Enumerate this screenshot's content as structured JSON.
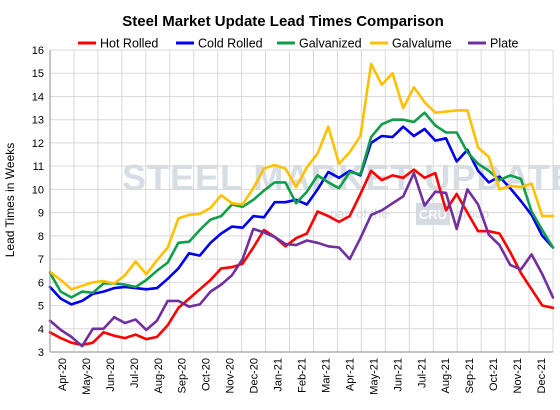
{
  "chart_data": {
    "type": "line",
    "title": "Steel Market Update Lead Times Comparison",
    "ylabel": "Lead Times in Weeks",
    "xlabel": "",
    "ylim": [
      3,
      16
    ],
    "yticks": [
      3,
      4,
      5,
      6,
      7,
      8,
      9,
      10,
      11,
      12,
      13,
      14,
      15,
      16
    ],
    "grid": true,
    "legend_position": "top",
    "x_labels": [
      "Apr-20",
      "May-20",
      "Jun-20",
      "Jul-20",
      "Aug-20",
      "Sep-20",
      "Oct-20",
      "Nov-20",
      "Dec-20",
      "Jan-21",
      "Feb-21",
      "Mar-21",
      "Apr-21",
      "May-21",
      "Jun-21",
      "Jul-21",
      "Aug-21",
      "Sep-21",
      "Oct-21",
      "Nov-21",
      "Dec-21"
    ],
    "series": [
      {
        "name": "Hot Rolled",
        "color": "#ff0000",
        "values": [
          3.85,
          3.6,
          3.4,
          3.3,
          3.4,
          3.85,
          3.7,
          3.6,
          3.75,
          3.55,
          3.65,
          4.15,
          4.9,
          5.3,
          5.7,
          6.1,
          6.6,
          6.65,
          6.8,
          7.5,
          8.25,
          7.95,
          7.55,
          7.9,
          8.1,
          9.05,
          8.85,
          8.6,
          8.85,
          9.8,
          10.8,
          10.4,
          10.6,
          10.5,
          10.85,
          10.5,
          10.7,
          9.1,
          9.8,
          9.0,
          8.2,
          8.2,
          8.1,
          7.3,
          6.4,
          5.7,
          5.0,
          4.9
        ]
      },
      {
        "name": "Cold Rolled",
        "color": "#0000ee",
        "values": [
          5.8,
          5.3,
          5.05,
          5.2,
          5.5,
          5.6,
          5.75,
          5.8,
          5.75,
          5.7,
          5.75,
          6.15,
          6.6,
          7.25,
          7.15,
          7.7,
          8.1,
          8.4,
          8.35,
          8.85,
          8.8,
          9.45,
          9.45,
          9.55,
          9.35,
          10.0,
          10.75,
          10.5,
          10.8,
          10.6,
          12.0,
          12.3,
          12.25,
          12.7,
          12.3,
          12.6,
          12.1,
          12.2,
          11.2,
          11.7,
          10.8,
          10.3,
          10.55,
          10.05,
          9.5,
          8.9,
          8.0,
          7.5
        ]
      },
      {
        "name": "Galvanized",
        "color": "#119e4b",
        "values": [
          6.4,
          5.6,
          5.35,
          5.6,
          5.55,
          5.95,
          5.95,
          5.9,
          5.8,
          6.1,
          6.5,
          6.85,
          7.7,
          7.75,
          8.25,
          8.7,
          8.85,
          9.35,
          9.25,
          9.55,
          9.95,
          10.3,
          10.3,
          9.4,
          9.9,
          10.6,
          10.3,
          10.05,
          10.75,
          10.65,
          12.25,
          12.8,
          13.0,
          13.0,
          12.9,
          13.3,
          12.75,
          12.45,
          12.45,
          11.6,
          11.1,
          10.8,
          10.4,
          10.6,
          10.45,
          9.05,
          8.25,
          7.5
        ]
      },
      {
        "name": "Galvalume",
        "color": "#ffc000",
        "values": [
          6.45,
          6.1,
          5.7,
          5.85,
          6.0,
          6.05,
          5.95,
          6.3,
          6.9,
          6.35,
          6.95,
          7.5,
          8.75,
          8.9,
          8.95,
          9.2,
          9.75,
          9.4,
          9.35,
          10.05,
          10.9,
          11.05,
          10.9,
          10.1,
          10.95,
          11.55,
          12.7,
          11.1,
          11.6,
          12.3,
          15.4,
          14.5,
          15.0,
          13.5,
          14.4,
          13.75,
          13.3,
          13.35,
          13.4,
          13.4,
          11.8,
          11.4,
          10.0,
          10.15,
          10.1,
          10.25,
          8.85,
          8.85
        ]
      },
      {
        "name": "Plate",
        "color": "#7030a0",
        "values": [
          4.35,
          3.95,
          3.65,
          3.25,
          4.0,
          4.0,
          4.5,
          4.25,
          4.4,
          3.95,
          4.35,
          5.2,
          5.2,
          4.95,
          5.05,
          5.6,
          5.9,
          6.3,
          7.0,
          8.3,
          8.15,
          7.95,
          7.65,
          7.6,
          7.8,
          7.7,
          7.55,
          7.5,
          7.0,
          7.9,
          8.9,
          9.1,
          9.4,
          9.7,
          10.7,
          9.3,
          9.9,
          9.85,
          8.3,
          10.0,
          9.35,
          8.05,
          7.6,
          6.75,
          6.55,
          7.2,
          6.35,
          5.35
        ]
      }
    ]
  },
  "watermark": {
    "brand": "STEEL MARKET UPDATE",
    "sub_left": "part of the",
    "sub_logo": "CRU",
    "sub_right": "group"
  }
}
